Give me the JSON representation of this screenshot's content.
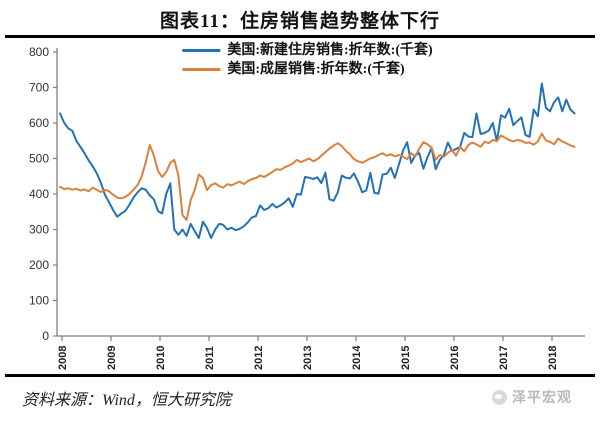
{
  "title": "图表11：住房销售趋势整体下行",
  "source": "资料来源：Wind，恒大研究院",
  "watermark": "泽平宏观",
  "colors": {
    "new_home_line": "#2272b4",
    "existing_home_line": "#d9813d",
    "axis": "#808080",
    "tick_label": "#333333",
    "rule": "#000000",
    "watermark_gray": "#b9b9b9"
  },
  "chart_data": {
    "type": "line",
    "title": "图表11：住房销售趋势整体下行",
    "xlabel": "",
    "ylabel": "",
    "ylim": [
      0,
      800
    ],
    "y_ticks": [
      0,
      100,
      200,
      300,
      400,
      500,
      600,
      700,
      800
    ],
    "x_tick_labels": [
      "2008",
      "2009",
      "2010",
      "2011",
      "2012",
      "2013",
      "2014",
      "2015",
      "2016",
      "2017",
      "2018"
    ],
    "x_unit": "monthly, 2008-01 to 2018-07",
    "grid": false,
    "legend_position": "top-center",
    "series": [
      {
        "name": "美国:新建住房销售:折年数:(千套)",
        "color": "#2272b4",
        "values": [
          627,
          601,
          585,
          578,
          550,
          533,
          515,
          495,
          478,
          458,
          432,
          398,
          377,
          355,
          336,
          345,
          352,
          370,
          390,
          405,
          416,
          412,
          396,
          385,
          352,
          345,
          400,
          430,
          300,
          285,
          300,
          282,
          316,
          295,
          276,
          322,
          304,
          276,
          300,
          316,
          313,
          300,
          305,
          298,
          302,
          309,
          320,
          334,
          338,
          368,
          355,
          360,
          372,
          362,
          368,
          376,
          388,
          364,
          400,
          398,
          448,
          446,
          442,
          447,
          431,
          460,
          385,
          381,
          404,
          452,
          446,
          444,
          458,
          434,
          405,
          410,
          460,
          403,
          401,
          455,
          457,
          474,
          445,
          483,
          522,
          546,
          487,
          510,
          515,
          471,
          504,
          530,
          470,
          496,
          510,
          545,
          521,
          527,
          533,
          572,
          562,
          560,
          627,
          569,
          572,
          579,
          600,
          549,
          622,
          615,
          640,
          594,
          605,
          616,
          566,
          561,
          638,
          619,
          711,
          643,
          633,
          659,
          672,
          633,
          666,
          638,
          627
        ]
      },
      {
        "name": "美国:成屋销售:折年数:(千套)",
        "color": "#d9813d",
        "values": [
          420,
          414,
          416,
          412,
          415,
          410,
          413,
          408,
          418,
          412,
          405,
          412,
          408,
          398,
          390,
          388,
          392,
          400,
          412,
          425,
          450,
          490,
          538,
          508,
          465,
          448,
          462,
          488,
          496,
          452,
          340,
          327,
          383,
          412,
          455,
          445,
          411,
          425,
          430,
          422,
          418,
          428,
          424,
          430,
          435,
          428,
          436,
          442,
          445,
          452,
          448,
          455,
          462,
          470,
          468,
          475,
          480,
          486,
          496,
          490,
          495,
          500,
          492,
          498,
          508,
          518,
          528,
          536,
          543,
          535,
          522,
          512,
          498,
          492,
          488,
          494,
          500,
          504,
          510,
          515,
          508,
          512,
          506,
          510,
          505,
          498,
          515,
          506,
          528,
          546,
          540,
          531,
          496,
          510,
          505,
          516,
          524,
          508,
          533,
          520,
          538,
          545,
          540,
          533,
          547,
          543,
          552,
          549,
          565,
          558,
          552,
          548,
          552,
          550,
          544,
          545,
          539,
          548,
          570,
          551,
          547,
          540,
          556,
          548,
          543,
          537,
          533
        ]
      }
    ]
  }
}
